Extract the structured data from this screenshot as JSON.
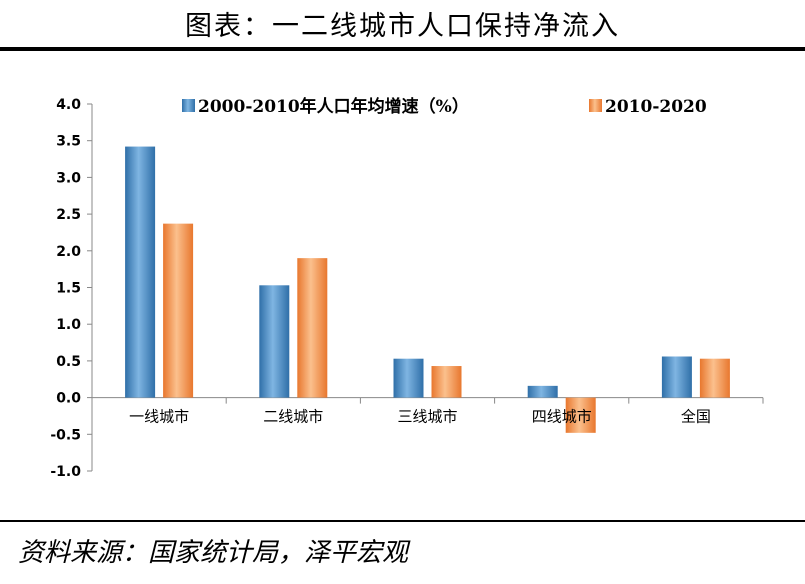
{
  "header": {
    "title": "图表：一二线城市人口保持净流入"
  },
  "footer": {
    "source": "资料来源：国家统计局，泽平宏观"
  },
  "chart_data": {
    "type": "bar",
    "categories": [
      "一线城市",
      "二线城市",
      "三线城市",
      "四线城市",
      "全国"
    ],
    "series": [
      {
        "name": "2000-2010年人口年均增速（%）",
        "values": [
          3.42,
          1.53,
          0.53,
          0.16,
          0.56
        ],
        "color": "#4a90c8"
      },
      {
        "name": "2010-2020",
        "values": [
          2.37,
          1.9,
          0.43,
          -0.48,
          0.53
        ],
        "color": "#f59d5c"
      }
    ],
    "ylim": [
      -1.0,
      4.0
    ],
    "yticks": [
      "4.0",
      "3.5",
      "3.0",
      "2.5",
      "2.0",
      "1.5",
      "1.0",
      "0.5",
      "0.0",
      "-0.5",
      "-1.0"
    ],
    "legend_position": "top",
    "grid": false
  }
}
